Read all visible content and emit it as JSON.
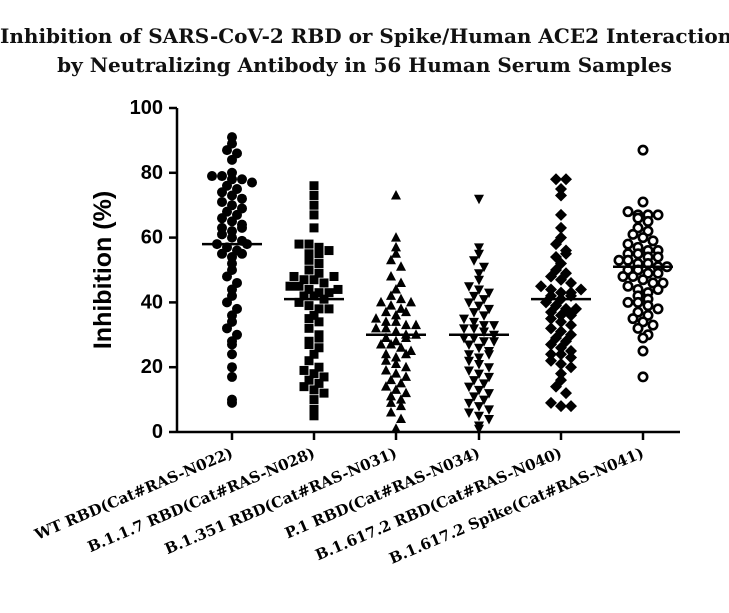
{
  "chart_data": {
    "type": "scatter",
    "title_lines": [
      "Inhibition of SARS-CoV-2 RBD or Spike/Human ACE2 Interaction",
      "by Neutralizing Antibody in 56 Human Serum Samples"
    ],
    "ylabel": "Inhibition (%)",
    "xlabel": "",
    "ylim": [
      0,
      100
    ],
    "yticks": [
      0,
      20,
      40,
      60,
      80,
      100
    ],
    "grid": false,
    "categories": [
      "WT RBD(Cat#RAS-N022)",
      "B.1.1.7 RBD(Cat#RAS-N028)",
      "B.1.351 RBD(Cat#RAS-N031)",
      "P.1 RBD(Cat#RAS-N034)",
      "B.1.617.2 RBD(Cat#RAS-N040)",
      "B.1.617.2 Spike(Cat#RAS-N041)"
    ],
    "series": [
      {
        "marker": "circle",
        "mean": 58,
        "values": [
          91,
          89,
          87,
          86,
          84,
          80,
          79,
          79,
          78,
          78,
          77,
          76,
          75,
          74,
          73,
          71,
          70,
          69,
          68,
          66,
          65,
          64,
          63,
          62,
          61,
          60,
          59,
          58,
          57,
          56,
          55,
          54,
          52,
          50,
          48,
          46,
          44,
          42,
          40,
          38,
          36,
          34,
          32,
          30,
          28,
          27,
          24,
          20,
          17,
          10,
          9,
          63,
          58,
          55,
          67,
          72
        ]
      },
      {
        "marker": "square",
        "mean": 41,
        "values": [
          76,
          73,
          70,
          67,
          63,
          58,
          58,
          57,
          56,
          55,
          53,
          52,
          50,
          49,
          48,
          47,
          47,
          46,
          45,
          45,
          44,
          43,
          43,
          42,
          42,
          41,
          40,
          39,
          38,
          36,
          35,
          34,
          32,
          30,
          28,
          27,
          26,
          24,
          22,
          20,
          19,
          18,
          17,
          16,
          15,
          14,
          13,
          12,
          10,
          7,
          5,
          44,
          48,
          38,
          55,
          29
        ]
      },
      {
        "marker": "triangle-up",
        "mean": 30,
        "values": [
          73,
          60,
          57,
          55,
          53,
          51,
          48,
          46,
          44,
          42,
          41,
          40,
          39,
          38,
          37,
          36,
          35,
          34,
          34,
          33,
          32,
          32,
          31,
          30,
          30,
          29,
          28,
          27,
          27,
          26,
          25,
          24,
          23,
          22,
          21,
          20,
          19,
          18,
          17,
          16,
          15,
          14,
          13,
          12,
          11,
          10,
          9,
          8,
          6,
          4,
          1,
          33,
          29,
          24,
          37,
          40
        ]
      },
      {
        "marker": "triangle-down",
        "mean": 30,
        "values": [
          72,
          57,
          55,
          53,
          51,
          49,
          47,
          45,
          44,
          43,
          42,
          41,
          40,
          39,
          38,
          37,
          36,
          35,
          34,
          33,
          32,
          32,
          31,
          30,
          29,
          29,
          28,
          27,
          26,
          25,
          24,
          23,
          22,
          21,
          20,
          19,
          18,
          17,
          16,
          15,
          14,
          13,
          12,
          11,
          10,
          9,
          8,
          7,
          6,
          5,
          4,
          2,
          1,
          33,
          28,
          24
        ]
      },
      {
        "marker": "diamond",
        "mean": 41,
        "values": [
          78,
          78,
          75,
          73,
          67,
          63,
          60,
          58,
          56,
          54,
          52,
          50,
          49,
          48,
          47,
          46,
          45,
          44,
          43,
          43,
          42,
          41,
          40,
          39,
          38,
          37,
          36,
          35,
          34,
          33,
          32,
          31,
          30,
          29,
          28,
          27,
          26,
          25,
          24,
          24,
          23,
          22,
          21,
          20,
          18,
          16,
          14,
          12,
          9,
          8,
          8,
          42,
          38,
          36,
          44,
          55
        ]
      },
      {
        "marker": "open-circle",
        "mean": 51,
        "values": [
          87,
          71,
          68,
          67,
          67,
          67,
          66,
          65,
          63,
          62,
          61,
          60,
          59,
          58,
          57,
          56,
          56,
          55,
          55,
          54,
          54,
          53,
          53,
          52,
          52,
          51,
          51,
          50,
          50,
          49,
          49,
          48,
          48,
          47,
          46,
          46,
          45,
          44,
          43,
          42,
          41,
          40,
          40,
          39,
          38,
          37,
          36,
          35,
          34,
          33,
          32,
          30,
          29,
          25,
          17,
          44
        ]
      }
    ]
  }
}
